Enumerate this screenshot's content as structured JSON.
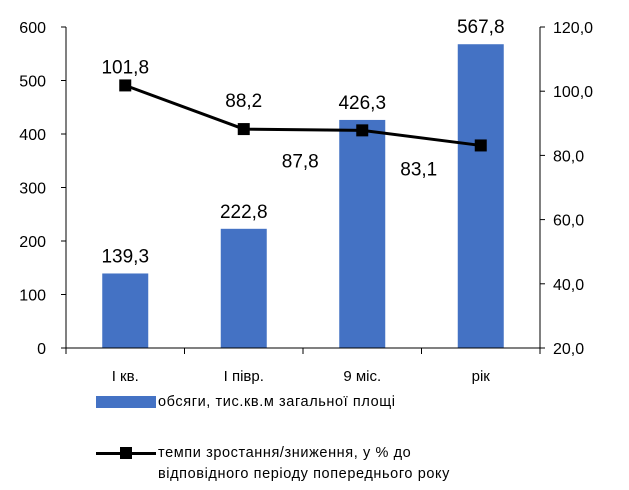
{
  "chart_data": {
    "type": "bar+line",
    "categories": [
      "I кв.",
      "I півр.",
      "9 міс.",
      "рік"
    ],
    "series": [
      {
        "name": "обсяги, тис.кв.м загальної площі",
        "type": "bar",
        "axis": "left",
        "color": "#4472C4",
        "values": [
          139.3,
          222.8,
          426.3,
          567.8
        ],
        "labels": [
          "139,3",
          "222,8",
          "426,3",
          "567,8"
        ]
      },
      {
        "name": "темпи зростання/зниження, у % до відповідного періоду попереднього року",
        "type": "line",
        "axis": "right",
        "color": "#000000",
        "marker": "square",
        "values": [
          101.8,
          88.2,
          87.8,
          83.1
        ],
        "labels": [
          "101,8",
          "88,2",
          "87,8",
          "83,1"
        ]
      }
    ],
    "left_axis": {
      "ylim": [
        0,
        600
      ],
      "ticks": [
        "0",
        "100",
        "200",
        "300",
        "400",
        "500",
        "600"
      ]
    },
    "right_axis": {
      "ylim": [
        20,
        120
      ],
      "ticks": [
        "20,0",
        "40,0",
        "60,0",
        "80,0",
        "100,0",
        "120,0"
      ]
    },
    "grid": false,
    "legend_position": "bottom"
  },
  "legend": {
    "bar_label": "обсяги,  тис.кв.м загальної  площі",
    "line_label_1": "темпи  зростання/зниження,   у % до",
    "line_label_2": "відповідного  періоду  попереднього  року"
  }
}
